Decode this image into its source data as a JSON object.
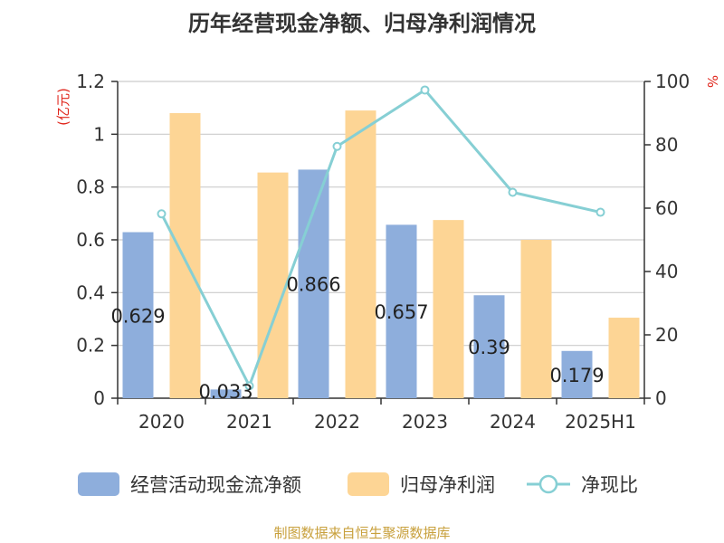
{
  "title": "历年经营现金净额、归母净利润情况",
  "source": "制图数据来自恒生聚源数据库",
  "chart_data": {
    "type": "bar",
    "categories": [
      "2020",
      "2021",
      "2022",
      "2023",
      "2024",
      "2025H1"
    ],
    "series": [
      {
        "name": "经营活动现金流净额",
        "kind": "bar",
        "axis": "left",
        "color": "#8eaedc",
        "values": [
          0.629,
          0.033,
          0.866,
          0.657,
          0.39,
          0.179
        ],
        "data_labels": [
          "0.629",
          "0.033",
          "0.866",
          "0.657",
          "0.39",
          "0.179"
        ]
      },
      {
        "name": "归母净利润",
        "kind": "bar",
        "axis": "left",
        "color": "#fdd595",
        "values": [
          1.08,
          0.855,
          1.09,
          0.675,
          0.6,
          0.305
        ]
      },
      {
        "name": "净现比",
        "kind": "line",
        "axis": "right",
        "color": "#86cfd4",
        "values": [
          58.2,
          3.9,
          79.5,
          97.3,
          65.0,
          58.7
        ]
      }
    ],
    "y_left": {
      "unit": "(亿元)",
      "range": [
        0,
        1.2
      ],
      "ticks": [
        "0",
        "0.2",
        "0.4",
        "0.6",
        "0.8",
        "1",
        "1.2"
      ]
    },
    "y_right": {
      "unit": "%",
      "range": [
        0,
        100
      ],
      "ticks": [
        "0",
        "20",
        "40",
        "60",
        "80",
        "100"
      ]
    },
    "grid": true,
    "legend_position": "bottom"
  }
}
